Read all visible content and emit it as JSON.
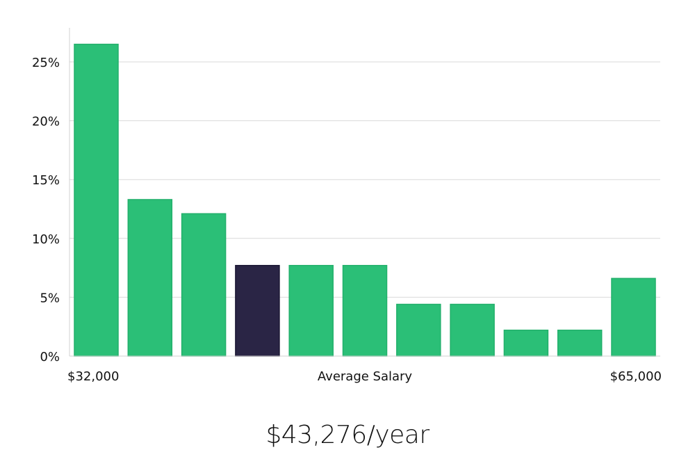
{
  "chart_data": {
    "type": "bar",
    "title": "",
    "xlabel": "Average Salary",
    "x_min_label": "$32,000",
    "x_max_label": "$65,000",
    "ylabel": "",
    "ylim": [
      0,
      28
    ],
    "y_ticks": [
      0,
      5,
      10,
      15,
      20,
      25
    ],
    "y_tick_labels": [
      "0%",
      "5%",
      "10%",
      "15%",
      "20%",
      "25%"
    ],
    "grid": true,
    "values": [
      26.5,
      13.3,
      12.1,
      7.7,
      7.7,
      7.7,
      4.4,
      4.4,
      2.2,
      2.2,
      6.6
    ],
    "highlight_index": 3,
    "colors": {
      "bar": "#2bbf77",
      "bar_stroke": "#22b06b",
      "highlight": "#2a2545",
      "highlight_stroke": "#1a1633",
      "grid": "#d9d9d9"
    }
  },
  "summary": {
    "salary_text": "$43,276/year"
  }
}
